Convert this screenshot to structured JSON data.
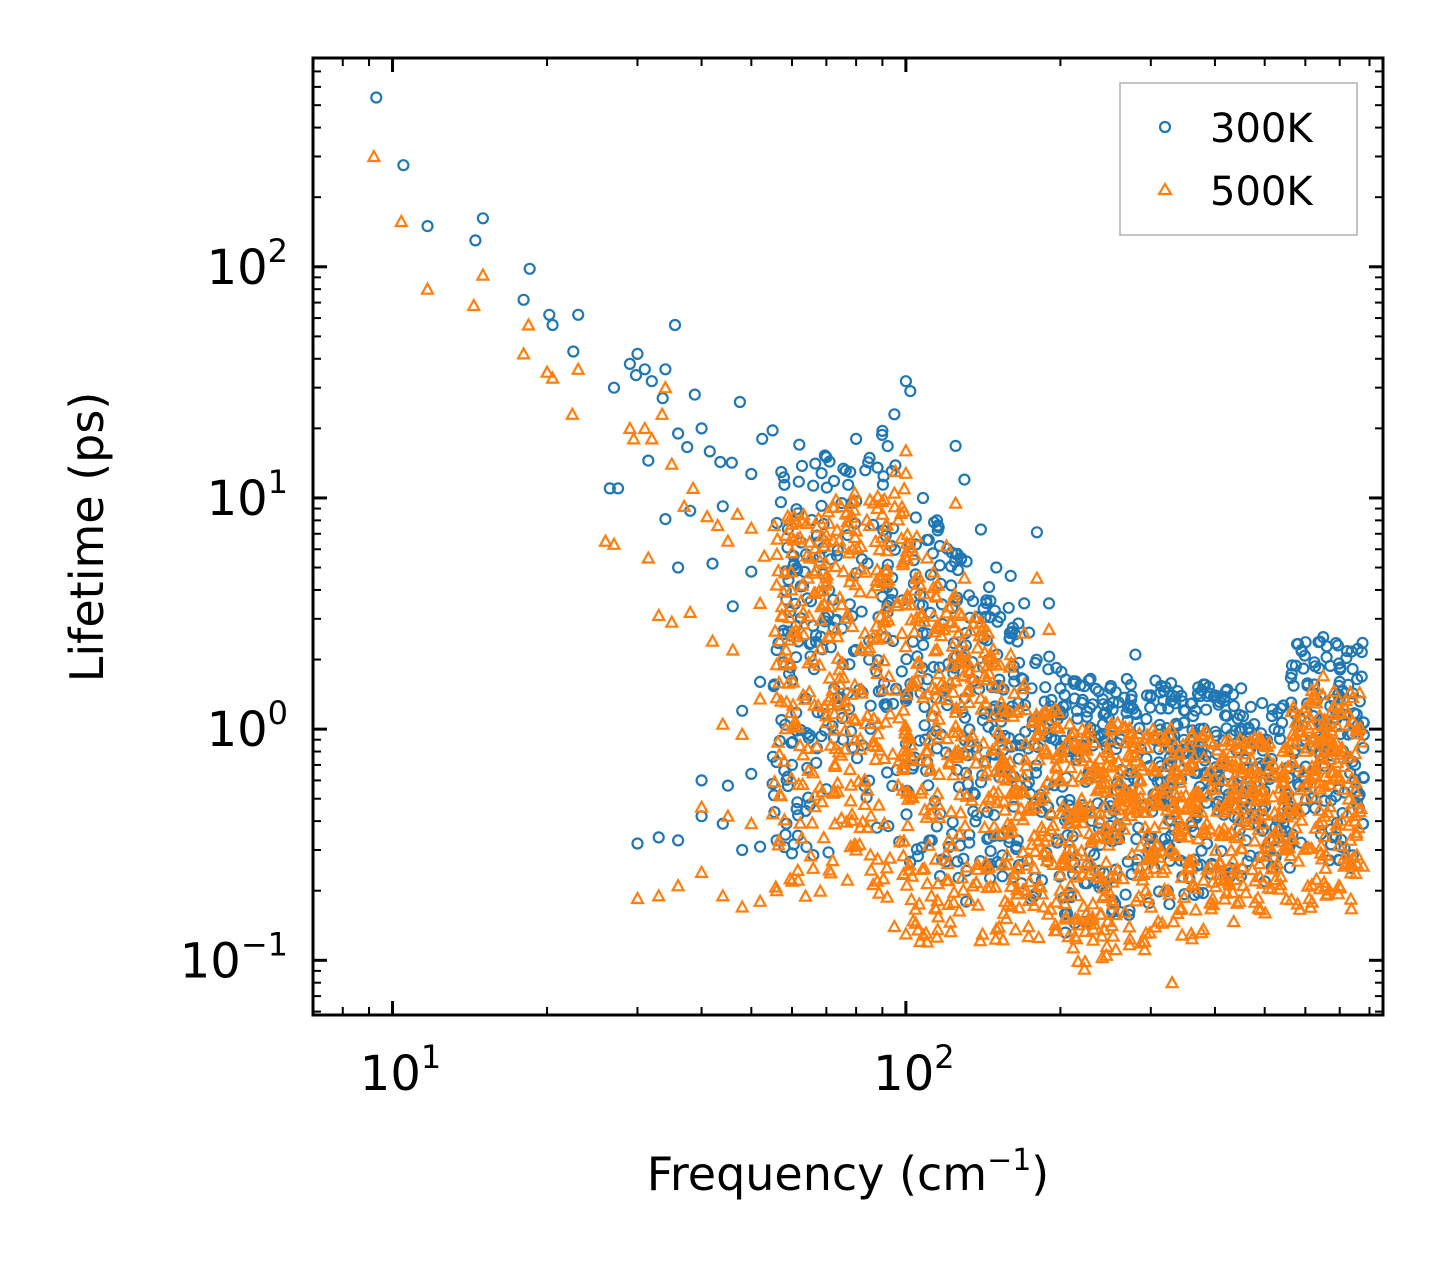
{
  "chart_data": {
    "type": "scatter",
    "title": "",
    "xlabel": "Frequency (cm",
    "xlabel_sup": "−1",
    "xlabel_end": ")",
    "ylabel": "Lifetime (ps)",
    "xscale": "log",
    "yscale": "log",
    "xlim": [
      7,
      850
    ],
    "ylim": [
      0.058,
      800
    ],
    "x_ticks": [
      {
        "value": 10,
        "base": "10",
        "exp": "1"
      },
      {
        "value": 100,
        "base": "10",
        "exp": "2"
      }
    ],
    "y_ticks": [
      {
        "value": 0.1,
        "base": "10",
        "exp": "−1"
      },
      {
        "value": 1,
        "base": "10",
        "exp": "0"
      },
      {
        "value": 10,
        "base": "10",
        "exp": "1"
      },
      {
        "value": 100,
        "base": "10",
        "exp": "2"
      }
    ],
    "grid": false,
    "legend_position": "top-right",
    "series": [
      {
        "name": "300K",
        "marker": "circle",
        "color": "#1f77b4",
        "points": [
          [
            9.3,
            540
          ],
          [
            10.5,
            275
          ],
          [
            11.7,
            150
          ],
          [
            14.5,
            130
          ],
          [
            15,
            162
          ],
          [
            18,
            72
          ],
          [
            18.5,
            98
          ],
          [
            20.2,
            62
          ],
          [
            20.5,
            56
          ],
          [
            22.5,
            43
          ],
          [
            23,
            62
          ],
          [
            26.5,
            11
          ],
          [
            27,
            30
          ],
          [
            27.5,
            11
          ],
          [
            29,
            38
          ],
          [
            30,
            42
          ],
          [
            31,
            36
          ],
          [
            32,
            32
          ],
          [
            34,
            36
          ],
          [
            35.5,
            56
          ],
          [
            29.8,
            34
          ],
          [
            31.5,
            14.5
          ],
          [
            33.6,
            27
          ],
          [
            36,
            19
          ],
          [
            37.5,
            16.6
          ],
          [
            38.8,
            28
          ],
          [
            40,
            20
          ],
          [
            41.5,
            15.9
          ],
          [
            43.5,
            14.3
          ],
          [
            45.8,
            14.2
          ],
          [
            47.5,
            26
          ],
          [
            50,
            12.7
          ],
          [
            52.5,
            18
          ],
          [
            55,
            19.6
          ],
          [
            58,
            11.4
          ],
          [
            62,
            17
          ],
          [
            66,
            11.3
          ],
          [
            70,
            15
          ],
          [
            75,
            9.5
          ],
          [
            80,
            18
          ],
          [
            85,
            14.9
          ],
          [
            90,
            19.5
          ],
          [
            95,
            23
          ],
          [
            100,
            32
          ],
          [
            102,
            29
          ],
          [
            108,
            10
          ],
          [
            115,
            8
          ],
          [
            125,
            16.8
          ],
          [
            130,
            12
          ],
          [
            140,
            7.3
          ],
          [
            150,
            5
          ],
          [
            160,
            4.6
          ],
          [
            170,
            3.5
          ],
          [
            180,
            7.1
          ],
          [
            190,
            3.5
          ],
          [
            200,
            1.5
          ],
          [
            220,
            1.3
          ],
          [
            250,
            1.5
          ],
          [
            280,
            2.1
          ],
          [
            300,
            1.4
          ],
          [
            350,
            1.2
          ],
          [
            400,
            1.4
          ],
          [
            450,
            1.5
          ],
          [
            500,
            0.9
          ],
          [
            550,
            0.5
          ],
          [
            600,
            0.9
          ],
          [
            650,
            2.5
          ],
          [
            700,
            1.6
          ],
          [
            750,
            0.7
          ],
          [
            30,
            0.32
          ],
          [
            33,
            0.34
          ],
          [
            36,
            0.33
          ],
          [
            40,
            0.42
          ],
          [
            44,
            0.39
          ],
          [
            48,
            0.3
          ],
          [
            52,
            0.31
          ],
          [
            56,
            0.33
          ],
          [
            60,
            0.29
          ],
          [
            65,
            0.47
          ],
          [
            70,
            0.55
          ],
          [
            40,
            0.6
          ],
          [
            45,
            0.57
          ],
          [
            50,
            0.64
          ],
          [
            55,
            0.58
          ],
          [
            60,
            0.7
          ],
          [
            48,
            1.2
          ],
          [
            52,
            1.6
          ],
          [
            56,
            2.2
          ],
          [
            46,
            3.4
          ],
          [
            50,
            4.8
          ],
          [
            42,
            5.2
          ],
          [
            36,
            5.0
          ],
          [
            34,
            8.1
          ],
          [
            38,
            8.8
          ],
          [
            44,
            9.2
          ]
        ]
      },
      {
        "name": "500K",
        "marker": "triangle",
        "color": "#ff7f0e",
        "points": [
          [
            9.2,
            300
          ],
          [
            10.4,
            157
          ],
          [
            11.7,
            80
          ],
          [
            14.4,
            68
          ],
          [
            15,
            92
          ],
          [
            18,
            42
          ],
          [
            18.4,
            56
          ],
          [
            20,
            35
          ],
          [
            20.5,
            33
          ],
          [
            22.4,
            23
          ],
          [
            23,
            36
          ],
          [
            26,
            6.5
          ],
          [
            27,
            6.3
          ],
          [
            29,
            20
          ],
          [
            29.5,
            18
          ],
          [
            31,
            20
          ],
          [
            32,
            18
          ],
          [
            33.5,
            23
          ],
          [
            34,
            30
          ],
          [
            35,
            14
          ],
          [
            31.5,
            5.5
          ],
          [
            33,
            3.1
          ],
          [
            35,
            2.9
          ],
          [
            37,
            9.2
          ],
          [
            38.5,
            11
          ],
          [
            41,
            8.3
          ],
          [
            43,
            7.6
          ],
          [
            45,
            6.5
          ],
          [
            47,
            8.5
          ],
          [
            50,
            7.4
          ],
          [
            53,
            5.6
          ],
          [
            56,
            4.2
          ],
          [
            60,
            5.8
          ],
          [
            65,
            5.5
          ],
          [
            70,
            6.9
          ],
          [
            75,
            6.1
          ],
          [
            80,
            7.2
          ],
          [
            85,
            7.6
          ],
          [
            90,
            8.5
          ],
          [
            95,
            10.5
          ],
          [
            100,
            16
          ],
          [
            105,
            6.8
          ],
          [
            110,
            5.5
          ],
          [
            120,
            6.2
          ],
          [
            125,
            9.5
          ],
          [
            130,
            4.5
          ],
          [
            140,
            2.9
          ],
          [
            150,
            1.9
          ],
          [
            160,
            2.1
          ],
          [
            170,
            2.6
          ],
          [
            180,
            4.5
          ],
          [
            190,
            2.7
          ],
          [
            200,
            0.8
          ],
          [
            220,
            0.42
          ],
          [
            250,
            0.75
          ],
          [
            280,
            0.65
          ],
          [
            300,
            0.5
          ],
          [
            330,
            0.08
          ],
          [
            350,
            0.45
          ],
          [
            400,
            0.55
          ],
          [
            450,
            0.65
          ],
          [
            500,
            0.5
          ],
          [
            550,
            0.3
          ],
          [
            600,
            0.5
          ],
          [
            650,
            1.7
          ],
          [
            700,
            0.75
          ],
          [
            750,
            0.4
          ],
          [
            30,
            0.185
          ],
          [
            33,
            0.19
          ],
          [
            36,
            0.21
          ],
          [
            40,
            0.24
          ],
          [
            44,
            0.19
          ],
          [
            48,
            0.17
          ],
          [
            52,
            0.18
          ],
          [
            56,
            0.2
          ],
          [
            60,
            0.22
          ],
          [
            66,
            0.25
          ],
          [
            72,
            0.27
          ],
          [
            80,
            0.3
          ],
          [
            88,
            0.22
          ],
          [
            95,
            0.14
          ],
          [
            100,
            0.13
          ],
          [
            110,
            0.12
          ],
          [
            40,
            0.46
          ],
          [
            45,
            0.42
          ],
          [
            50,
            0.39
          ],
          [
            55,
            0.43
          ],
          [
            44,
            1.05
          ],
          [
            48,
            0.95
          ],
          [
            52,
            1.35
          ],
          [
            56,
            1.9
          ],
          [
            46,
            2.2
          ],
          [
            42,
            2.4
          ],
          [
            38,
            3.2
          ],
          [
            52,
            3.5
          ]
        ]
      }
    ],
    "clouds": [
      {
        "series": 0,
        "xrange": [
          55,
          780
        ],
        "count": 1100,
        "seed": 11
      },
      {
        "series": 1,
        "xrange": [
          55,
          780
        ],
        "count": 1500,
        "seed": 29
      }
    ]
  }
}
